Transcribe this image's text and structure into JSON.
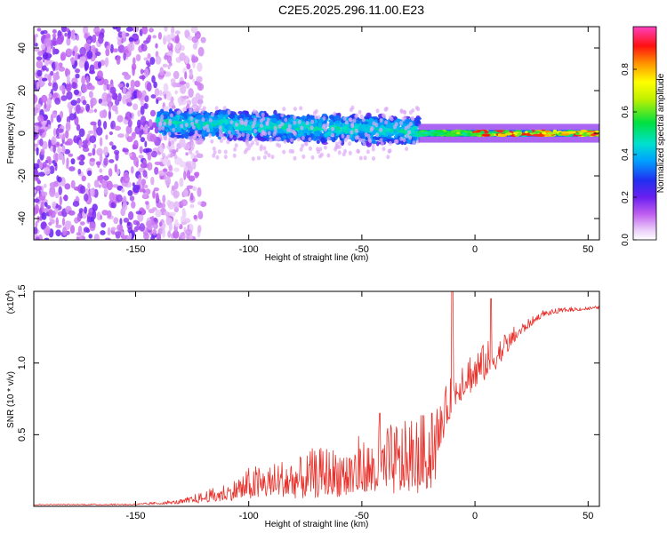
{
  "title": "C2E5.2025.296.11.00.E23",
  "colors": {
    "snr_line": "#e8302a",
    "spectrum_low": "#c9a6f2",
    "spectrum_mid": "#6a1ff0",
    "axis": "#000000"
  },
  "chart_data": [
    {
      "type": "heatmap",
      "name": "spectrogram",
      "xlabel": "Height of straight line (km)",
      "ylabel": "Frequency (Hz)",
      "xlim": [
        -195,
        55
      ],
      "ylim": [
        -50,
        50
      ],
      "xticks": [
        -150,
        -100,
        -50,
        0,
        50
      ],
      "yticks": [
        -40,
        -20,
        0,
        20,
        40
      ],
      "colorbar": {
        "label": "Normalized spectral amplitude",
        "range": [
          0,
          1
        ],
        "ticks": [
          "0.0",
          "0.2",
          "0.4",
          "0.6",
          "0.8"
        ],
        "tick_values": [
          0,
          0.2,
          0.4,
          0.6,
          0.8
        ]
      },
      "bands": [
        {
          "x_range": [
            -195,
            -135
          ],
          "freq_spread": 50,
          "amplitude": 0.08,
          "desc": "noise"
        },
        {
          "x_range": [
            -140,
            -25
          ],
          "freq_center_start": 5,
          "freq_center_end": 1,
          "freq_spread": 6,
          "amplitude": 0.35
        },
        {
          "x_range": [
            -25,
            55
          ],
          "freq_center": 0,
          "freq_spread": 2,
          "amplitude": 0.9
        }
      ]
    },
    {
      "type": "line",
      "name": "snr",
      "xlabel": "Height of straight line (km)",
      "ylabel": "SNR (10 * v/v)",
      "yscale_label": "(x10",
      "yscale_exp": "4",
      "yscale_close": ")",
      "xlim": [
        -195,
        55
      ],
      "ylim": [
        0,
        1.5
      ],
      "xticks": [
        -150,
        -100,
        -50,
        0,
        50
      ],
      "yticks": [
        0.5,
        1.0,
        1.5
      ],
      "ytick_labels": [
        "0.5",
        "1.0",
        "1.5"
      ],
      "series": [
        {
          "name": "SNR",
          "envelope": [
            {
              "x": -195,
              "base": 0.01,
              "spike": 0.005
            },
            {
              "x": -150,
              "base": 0.01,
              "spike": 0.01
            },
            {
              "x": -130,
              "base": 0.02,
              "spike": 0.03
            },
            {
              "x": -110,
              "base": 0.05,
              "spike": 0.12
            },
            {
              "x": -100,
              "base": 0.08,
              "spike": 0.2
            },
            {
              "x": -75,
              "base": 0.1,
              "spike": 0.3
            },
            {
              "x": -50,
              "base": 0.12,
              "spike": 0.4
            },
            {
              "x": -25,
              "base": 0.15,
              "spike": 0.55
            },
            {
              "x": -18,
              "base": 0.2,
              "spike": 0.5
            },
            {
              "x": -15,
              "base": 0.45,
              "spike": 0.35
            },
            {
              "x": -10,
              "base": 0.7,
              "spike": 0.25
            },
            {
              "x": -5,
              "base": 0.8,
              "spike": 0.3
            },
            {
              "x": 0,
              "base": 0.85,
              "spike": 0.3
            },
            {
              "x": 10,
              "base": 1.0,
              "spike": 0.2
            },
            {
              "x": 20,
              "base": 1.2,
              "spike": 0.08
            },
            {
              "x": 30,
              "base": 1.33,
              "spike": 0.04
            },
            {
              "x": 40,
              "base": 1.36,
              "spike": 0.03
            },
            {
              "x": 55,
              "base": 1.38,
              "spike": 0.02
            }
          ],
          "peaks": [
            {
              "x": -10,
              "y": 1.5
            },
            {
              "x": 7,
              "y": 1.45
            },
            {
              "x": -19,
              "y": 0.65
            },
            {
              "x": -42,
              "y": 0.65
            }
          ]
        }
      ]
    }
  ]
}
